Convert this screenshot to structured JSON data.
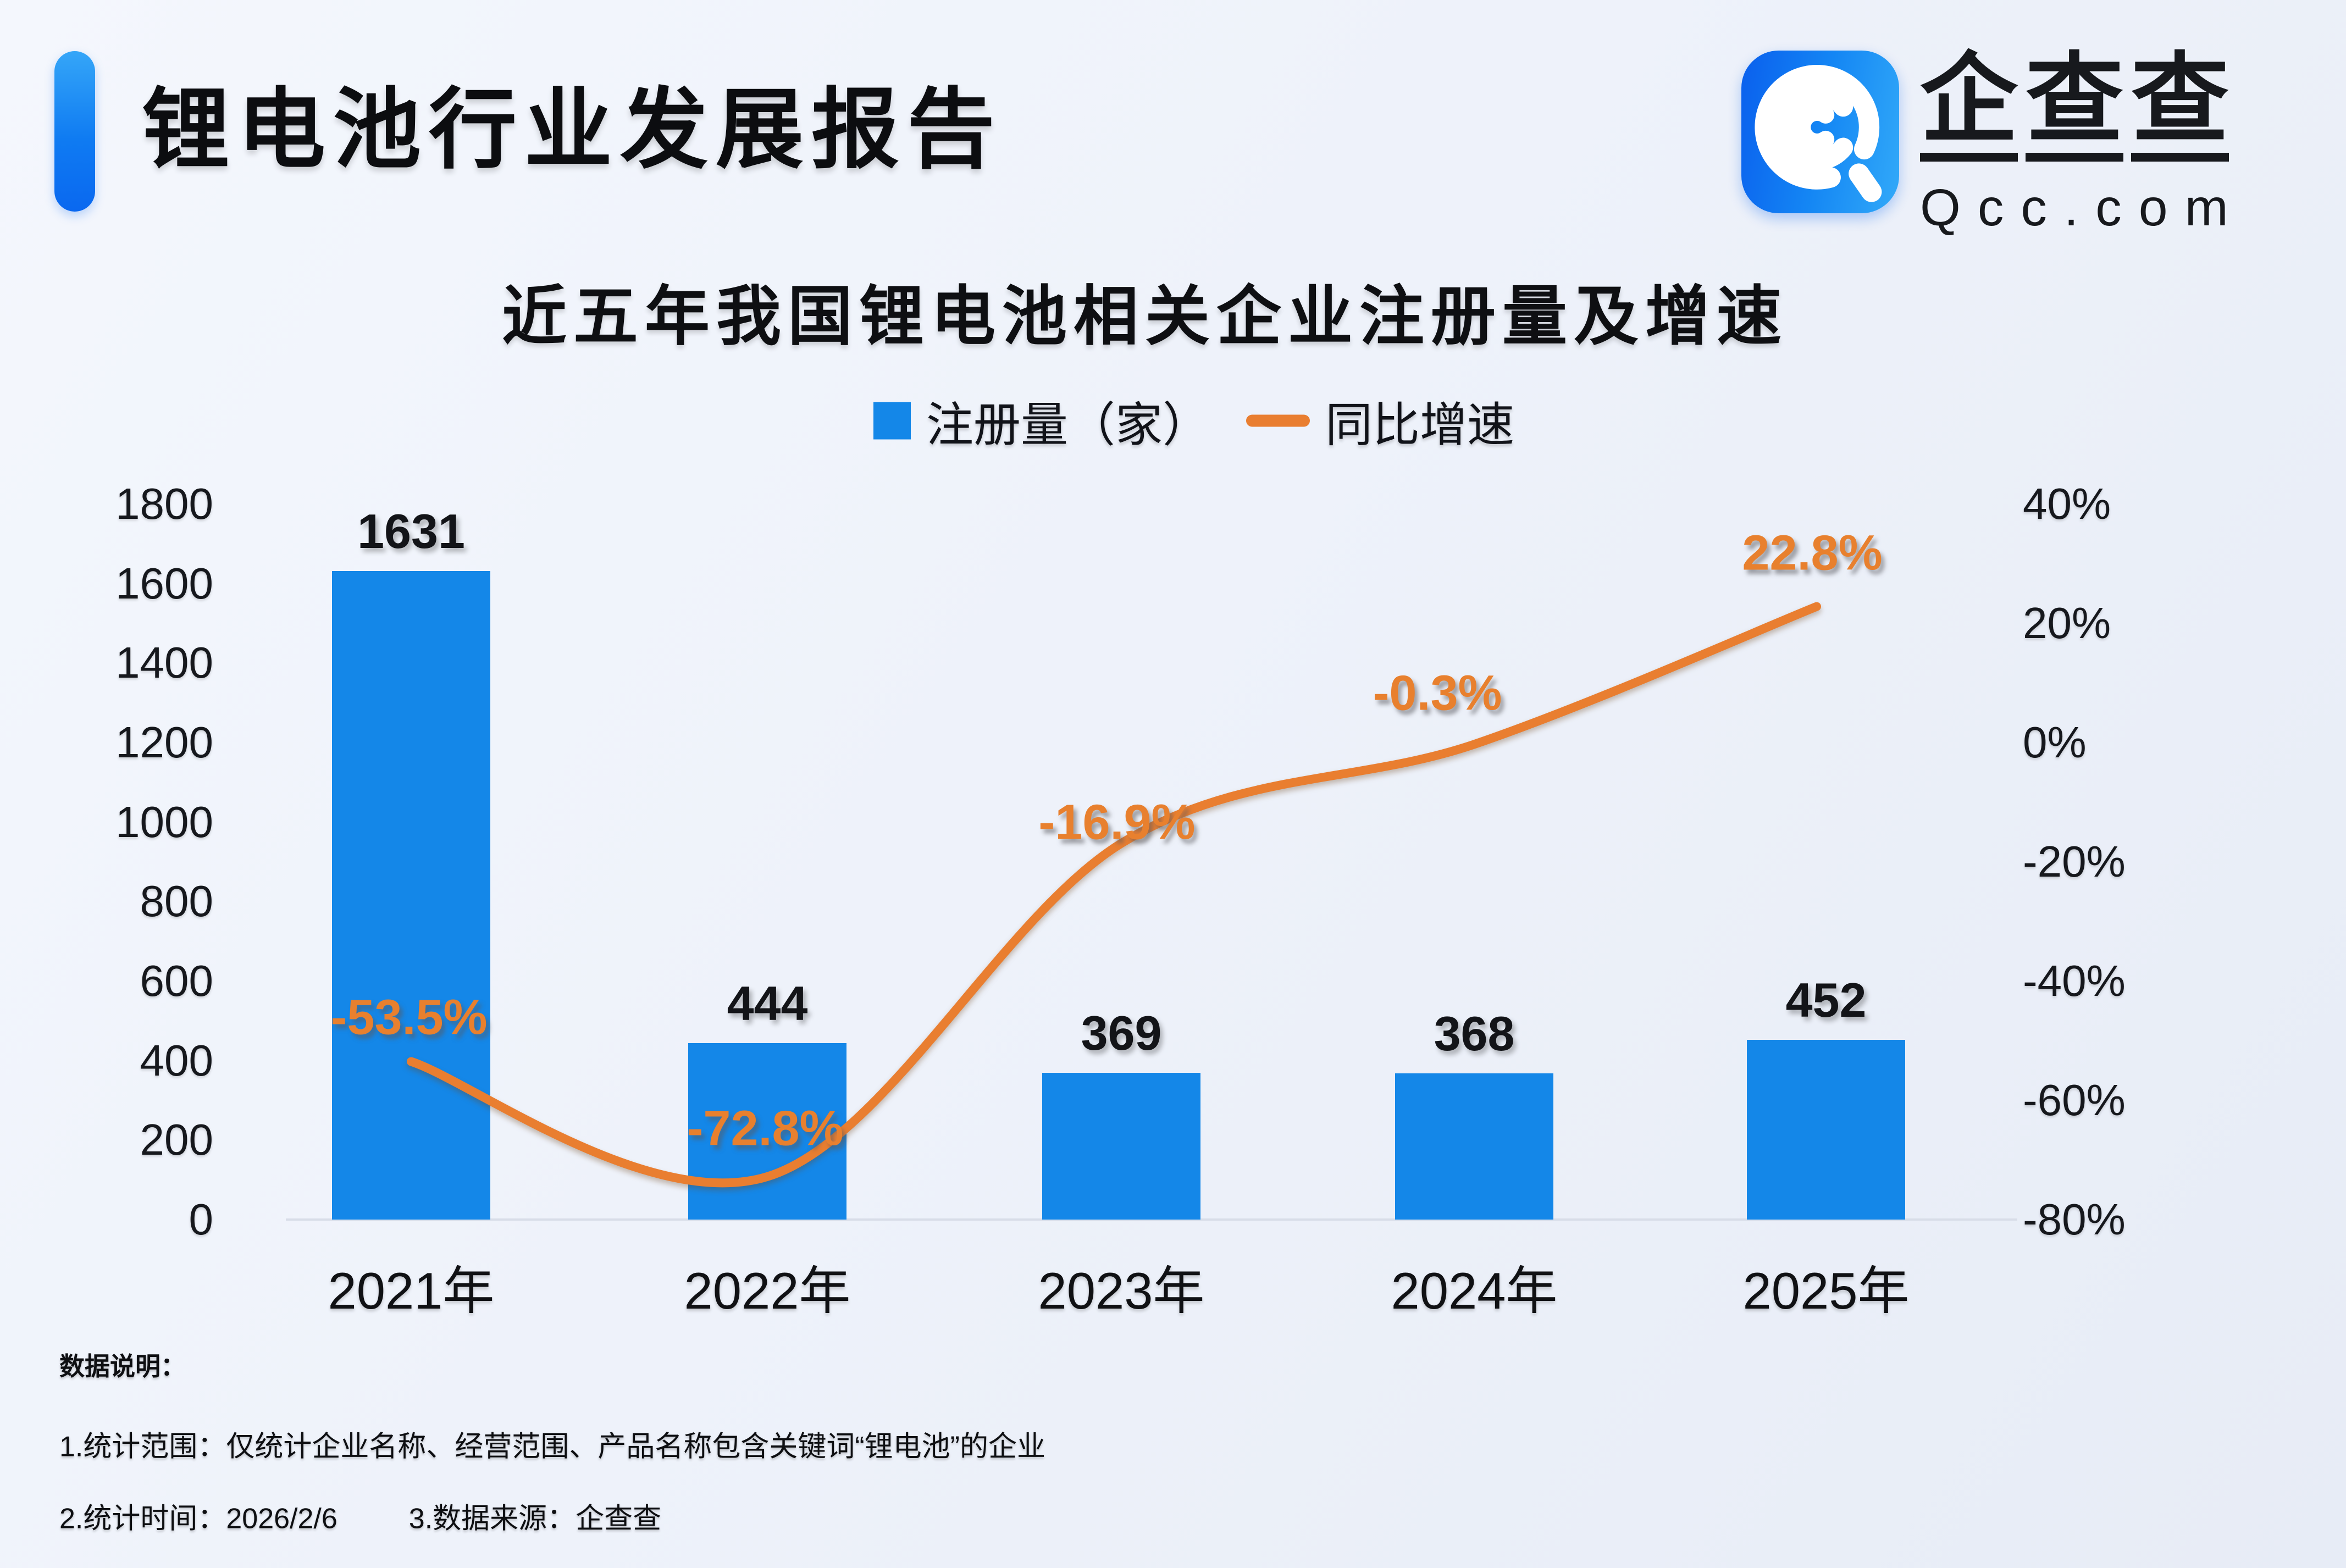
{
  "header": {
    "title": "锂电池行业发展报告",
    "logo": {
      "name": "企查查",
      "domain": "Qcc.com"
    }
  },
  "chart_data": {
    "type": "bar",
    "title": "近五年我国锂电池相关企业注册量及增速",
    "categories": [
      "2021年",
      "2022年",
      "2023年",
      "2024年",
      "2025年"
    ],
    "series": [
      {
        "name": "注册量（家）",
        "type": "bar",
        "color": "#1487e8",
        "values": [
          1631,
          444,
          369,
          368,
          452
        ]
      },
      {
        "name": "同比增速",
        "type": "line",
        "color": "#e97e30",
        "values_pct": [
          -53.5,
          -72.8,
          -16.9,
          -0.3,
          22.8
        ],
        "point_labels": [
          "-53.5%",
          "-72.8%",
          "-16.9%",
          "-0.3%",
          "22.8%"
        ]
      }
    ],
    "left_axis": {
      "range": [
        0,
        1800
      ],
      "ticks": [
        "1800",
        "1600",
        "1400",
        "1200",
        "1000",
        "800",
        "600",
        "400",
        "200",
        "0"
      ]
    },
    "right_axis": {
      "range_pct": [
        -80,
        40
      ],
      "ticks": [
        "40%",
        "20%",
        "0%",
        "-20%",
        "-40%",
        "-60%",
        "-80%"
      ]
    },
    "legend_position": "top",
    "grid": false
  },
  "footer": {
    "heading": "数据说明：",
    "note_scope": "1.统计范围：仅统计企业名称、经营范围、产品名称包含关键词“锂电池”的企业",
    "note_time": "2.统计时间：2026/2/6",
    "note_source": "3.数据来源：企查查"
  }
}
